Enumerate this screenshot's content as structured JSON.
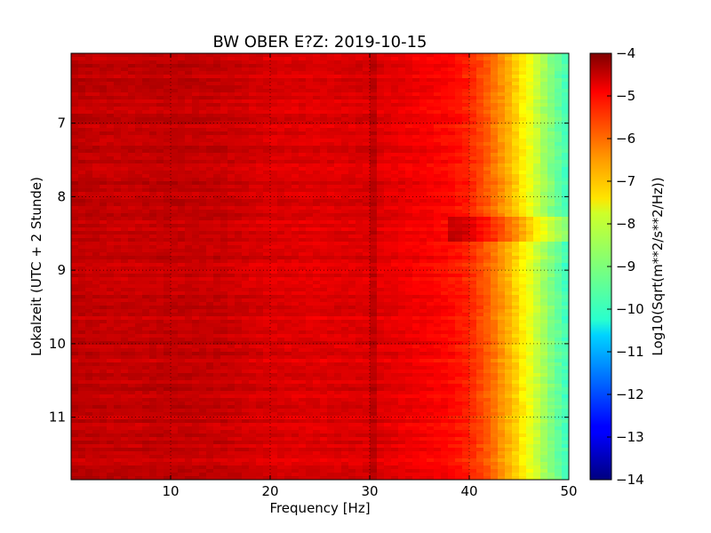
{
  "chart_data": {
    "type": "heatmap",
    "title": "BW OBER E?Z: 2019-10-15",
    "xlabel": "Frequency [Hz]",
    "ylabel": "Lokalzeit (UTC + 2 Stunde)",
    "xlim": [
      0,
      50
    ],
    "ylim": [
      6.05,
      11.85
    ],
    "y_inverted": true,
    "x_ticks": [
      10,
      20,
      30,
      40,
      50
    ],
    "y_ticks": [
      7,
      8,
      9,
      10,
      11
    ],
    "grid": true,
    "colorbar": {
      "label": "Log10(Sqrt(m**2/s**2/Hz))",
      "colormap": "jet",
      "range": [
        -14,
        -4
      ],
      "ticks": [
        -4,
        -5,
        -6,
        -7,
        -8,
        -9,
        -10,
        -11,
        -12,
        -13,
        -14
      ]
    },
    "level_profile": {
      "frequency_hz": [
        0,
        5,
        10,
        15,
        20,
        25,
        30,
        35,
        38,
        40,
        42,
        44,
        46,
        48,
        50
      ],
      "log10_amplitude": [
        -4.6,
        -4.7,
        -4.65,
        -4.7,
        -4.9,
        -4.95,
        -4.9,
        -5.15,
        -5.3,
        -5.6,
        -6.2,
        -7.0,
        -7.9,
        -8.9,
        -9.7
      ]
    },
    "features": {
      "vertical_line_hz": 30.5,
      "bright_band_time": 8.45
    }
  }
}
